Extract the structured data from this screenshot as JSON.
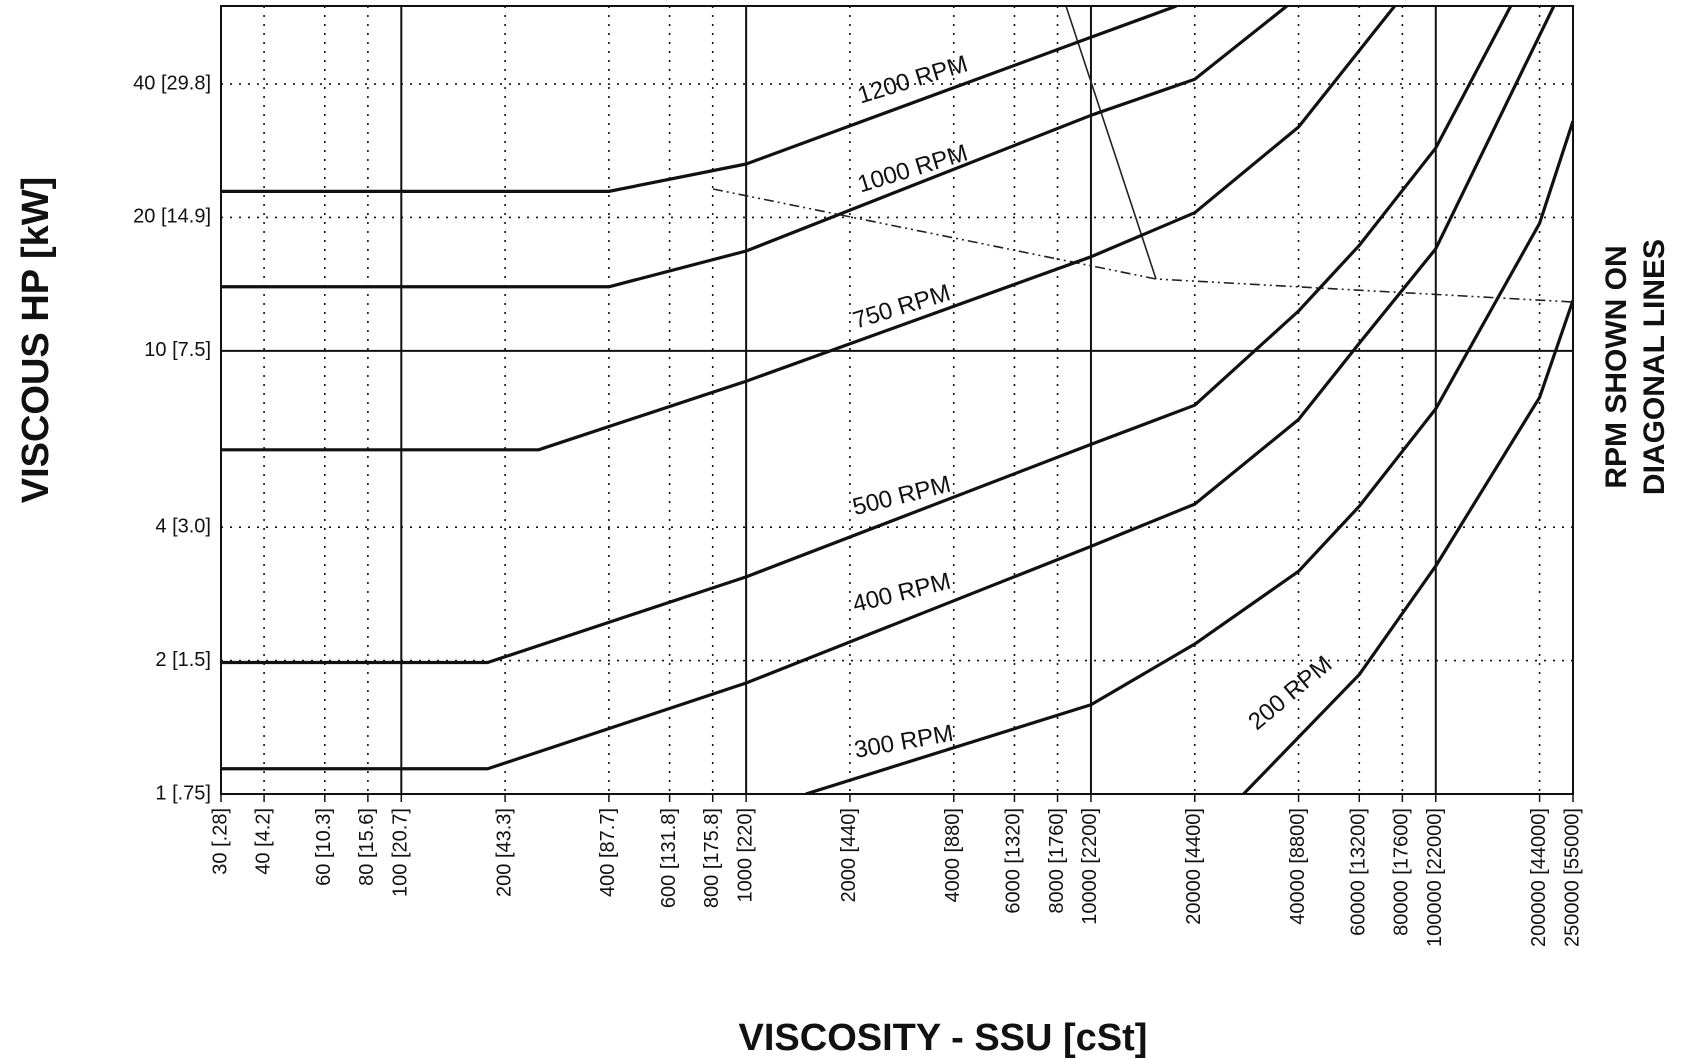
{
  "chart_data": {
    "type": "line",
    "x_label": "VISCOSITY - SSU [cSt]",
    "y_label": "VISCOUS HP [kW]",
    "right_label": [
      "RPM SHOWN ON",
      "DIAGONAL LINES"
    ],
    "log_x": true,
    "log_y": true,
    "grid": true,
    "xlim": [
      30,
      250000
    ],
    "ylim": [
      1,
      60
    ],
    "xticks": [
      {
        "value": 30,
        "label": "30 [.28]"
      },
      {
        "value": 40,
        "label": "40 [4.2]"
      },
      {
        "value": 60,
        "label": "60 [10.3]"
      },
      {
        "value": 80,
        "label": "80 [15.6]"
      },
      {
        "value": 100,
        "label": "100 [20.7]"
      },
      {
        "value": 200,
        "label": "200 [43.3]"
      },
      {
        "value": 400,
        "label": "400 [87.7]"
      },
      {
        "value": 600,
        "label": "600 [131.8]"
      },
      {
        "value": 800,
        "label": "800 [175.8]"
      },
      {
        "value": 1000,
        "label": "1000 [220]"
      },
      {
        "value": 2000,
        "label": "2000 [440]"
      },
      {
        "value": 4000,
        "label": "4000 [880]"
      },
      {
        "value": 6000,
        "label": "6000 [1320]"
      },
      {
        "value": 8000,
        "label": "8000 [1760]"
      },
      {
        "value": 10000,
        "label": "10000 [2200]"
      },
      {
        "value": 20000,
        "label": "20000 [4400]"
      },
      {
        "value": 40000,
        "label": "40000 [8800]"
      },
      {
        "value": 60000,
        "label": "60000 [13200]"
      },
      {
        "value": 80000,
        "label": "80000 [17600]"
      },
      {
        "value": 100000,
        "label": "100000 [22000]"
      },
      {
        "value": 200000,
        "label": "200000 [44000]"
      },
      {
        "value": 250000,
        "label": "250000 [55000]"
      }
    ],
    "yticks": [
      {
        "value": 1,
        "label": "1 [.75]"
      },
      {
        "value": 2,
        "label": "2 [1.5]"
      },
      {
        "value": 4,
        "label": "4 [3.0]"
      },
      {
        "value": 10,
        "label": "10 [7.5]"
      },
      {
        "value": 20,
        "label": "20 [14.9]"
      },
      {
        "value": 40,
        "label": "40 [29.8]"
      }
    ],
    "annotations": [
      "1200 RPM",
      "1000 RPM",
      "750 RPM",
      "500 RPM",
      "400 RPM",
      "300 RPM",
      "200 RPM"
    ],
    "color": "#111111",
    "series": [
      {
        "x": [
          30,
          400,
          1000,
          10000,
          17700
        ],
        "values": [
          22.9,
          22.9,
          26.4,
          51,
          60
        ]
      },
      {
        "x": [
          30,
          400,
          1000,
          10000,
          20000,
          37000
        ],
        "values": [
          13.95,
          13.95,
          16.8,
          34.0,
          41.0,
          60
        ]
      },
      {
        "x": [
          30,
          250,
          1000,
          10000,
          20000,
          40000,
          76000
        ],
        "values": [
          5.98,
          5.98,
          8.54,
          16.3,
          20.5,
          32,
          60
        ]
      },
      {
        "x": [
          30,
          178,
          1000,
          10000,
          20000,
          40000,
          60000,
          100000,
          165000
        ],
        "values": [
          1.98,
          1.98,
          3.09,
          6.15,
          7.54,
          12.3,
          17.3,
          28.7,
          60
        ]
      },
      {
        "x": [
          30,
          178,
          1000,
          10000,
          20000,
          40000,
          60000,
          100000,
          220000
        ],
        "values": [
          1.14,
          1.14,
          1.78,
          3.62,
          4.51,
          7.0,
          10.4,
          17.0,
          60
        ]
      },
      {
        "x": [
          1490,
          10000,
          20000,
          40000,
          60000,
          100000,
          200000,
          250000
        ],
        "values": [
          1,
          1.59,
          2.18,
          3.18,
          4.46,
          7.4,
          19.4,
          33.0
        ]
      },
      {
        "x": [
          27700,
          60000,
          100000,
          200000,
          250000
        ],
        "values": [
          1,
          1.86,
          3.27,
          7.85,
          13.0
        ]
      }
    ]
  }
}
